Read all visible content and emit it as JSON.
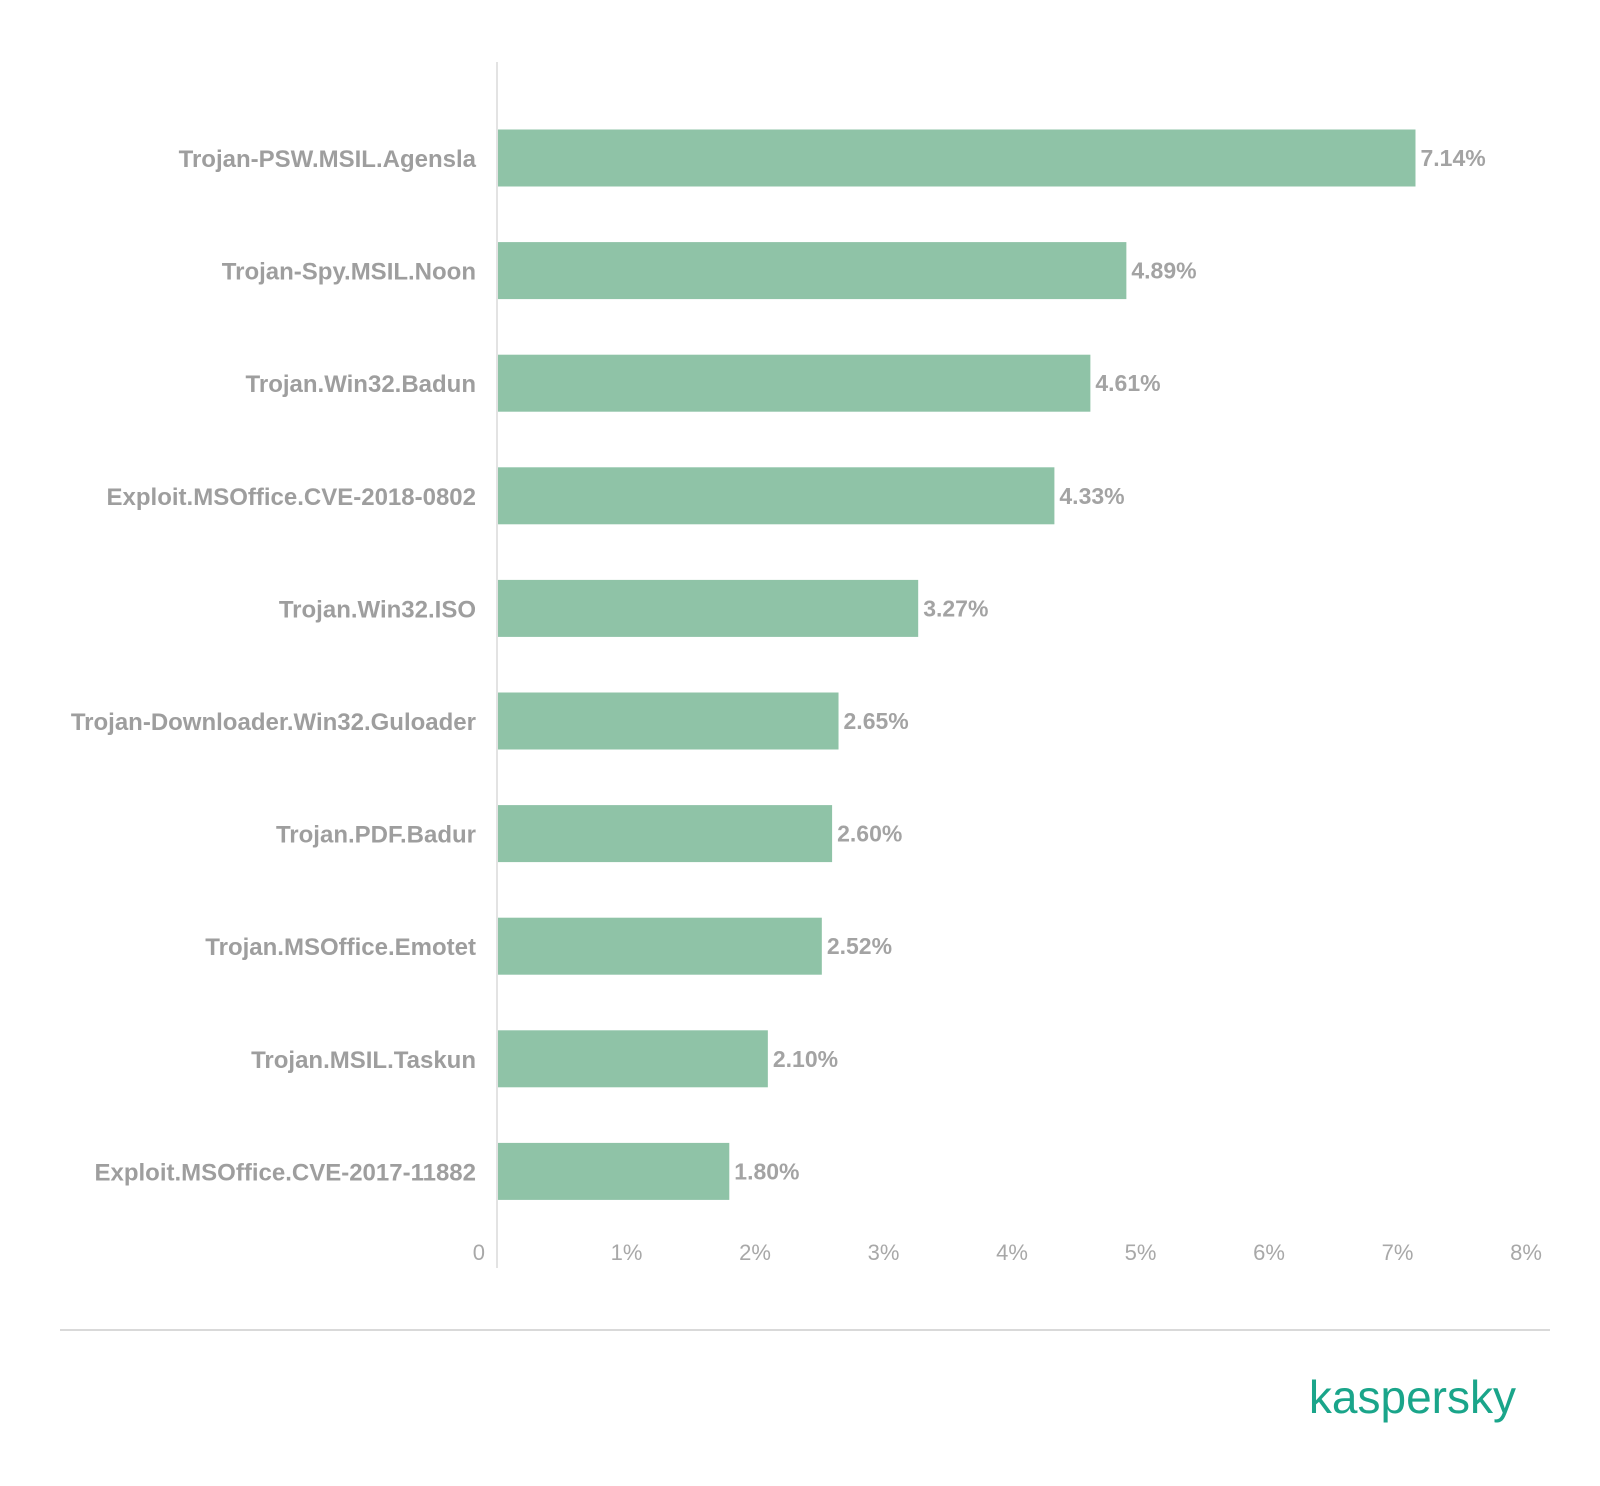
{
  "chart_data": {
    "type": "bar",
    "orientation": "horizontal",
    "categories": [
      "Trojan-PSW.MSIL.Agensla",
      "Trojan-Spy.MSIL.Noon",
      "Trojan.Win32.Badun",
      "Exploit.MSOffice.CVE-2018-0802",
      "Trojan.Win32.ISO",
      "Trojan-Downloader.Win32.Guloader",
      "Trojan.PDF.Badur",
      "Trojan.MSOffice.Emotet",
      "Trojan.MSIL.Taskun",
      "Exploit.MSOffice.CVE-2017-11882"
    ],
    "values": [
      7.14,
      4.89,
      4.61,
      4.33,
      3.27,
      2.65,
      2.6,
      2.52,
      2.1,
      1.8
    ],
    "value_labels": [
      "7.14%",
      "4.89%",
      "4.61%",
      "4.33%",
      "3.27%",
      "2.65%",
      "2.60%",
      "2.52%",
      "2.10%",
      "1.80%"
    ],
    "xlim": [
      0,
      8
    ],
    "x_ticks": [
      "0",
      "1%",
      "2%",
      "3%",
      "4%",
      "5%",
      "6%",
      "7%",
      "8%"
    ],
    "grid": false,
    "bar_color": "#8fc3a7"
  },
  "brand": {
    "logo_text": "kaspersky",
    "color": "#1aa58a"
  }
}
